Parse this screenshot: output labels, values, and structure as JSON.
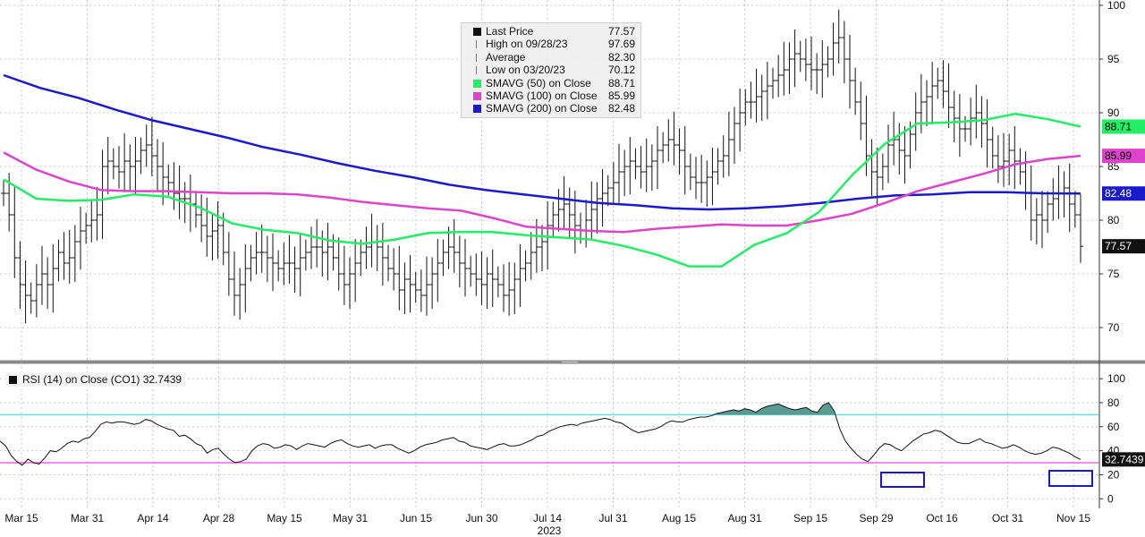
{
  "legend": {
    "rows": [
      {
        "label": "Last Price",
        "value": "77.57",
        "icon": "black-square"
      },
      {
        "label": "High on 09/28/23",
        "value": "97.69",
        "icon": "high-marker"
      },
      {
        "label": "Average",
        "value": "82.30",
        "icon": "average-marker"
      },
      {
        "label": "Low on 03/20/23",
        "value": "70.12",
        "icon": "low-marker"
      },
      {
        "label": "SMAVG (50)  on Close",
        "value": "88.71",
        "color": "#22ee66"
      },
      {
        "label": "SMAVG (100)  on Close",
        "value": "85.99",
        "color": "#dd44cc"
      },
      {
        "label": "SMAVG (200)  on Close",
        "value": "82.48",
        "color": "#1a1acc"
      }
    ]
  },
  "rsi_legend": {
    "label": "RSI (14)  on Close (CO1) 32.7439"
  },
  "chart_data": [
    {
      "type": "line",
      "name": "price-panel",
      "x_ticks": [
        "Mar 15",
        "Mar 31",
        "Apr 14",
        "Apr 28",
        "May 15",
        "May 31",
        "Jun 15",
        "Jun 30",
        "Jul 14",
        "Jul 31",
        "Aug 15",
        "Aug 31",
        "Sep 15",
        "Sep 29",
        "Oct 16",
        "Oct 31",
        "Nov 15"
      ],
      "x_year_label": "2023",
      "ylim": [
        67,
        100.5
      ],
      "y_ticks": [
        70,
        75,
        80,
        85,
        90,
        95,
        100
      ],
      "price_close": [
        82.5,
        80.5,
        76.5,
        74.0,
        73.0,
        72.5,
        74.0,
        75.0,
        74.0,
        75.5,
        77.0,
        76.0,
        76.5,
        78.0,
        79.0,
        79.5,
        80.0,
        80.5,
        85.0,
        85.5,
        85.0,
        84.5,
        85.5,
        85.0,
        85.5,
        86.5,
        87.0,
        86.0,
        85.0,
        84.0,
        83.5,
        82.5,
        82.0,
        82.0,
        81.5,
        80.5,
        79.5,
        78.5,
        79.0,
        79.5,
        77.0,
        74.5,
        73.0,
        74.0,
        75.5,
        76.5,
        77.0,
        77.0,
        76.5,
        76.0,
        75.5,
        76.0,
        76.0,
        75.5,
        76.5,
        77.0,
        77.5,
        77.5,
        77.0,
        77.5,
        76.5,
        75.0,
        74.0,
        75.0,
        76.0,
        77.0,
        77.5,
        78.0,
        77.5,
        76.5,
        75.5,
        75.0,
        73.5,
        74.5,
        74.0,
        73.5,
        73.0,
        74.0,
        75.0,
        76.0,
        77.0,
        77.5,
        77.0,
        76.0,
        75.5,
        75.0,
        74.5,
        74.0,
        75.0,
        74.5,
        74.0,
        73.0,
        73.5,
        74.5,
        75.5,
        76.0,
        77.0,
        77.5,
        78.0,
        79.5,
        80.5,
        81.0,
        81.5,
        80.5,
        79.5,
        79.0,
        80.0,
        81.0,
        82.0,
        82.5,
        83.0,
        83.5,
        84.5,
        85.0,
        85.5,
        85.0,
        84.5,
        85.0,
        85.5,
        86.5,
        87.0,
        87.5,
        87.0,
        86.5,
        85.0,
        84.0,
        83.5,
        83.5,
        84.0,
        84.5,
        85.5,
        86.0,
        87.5,
        89.0,
        90.0,
        91.0,
        91.0,
        91.5,
        92.0,
        92.5,
        93.0,
        93.5,
        94.0,
        95.0,
        95.5,
        95.0,
        94.5,
        94.0,
        94.0,
        94.5,
        95.0,
        96.5,
        97.0,
        95.0,
        93.0,
        91.0,
        89.0,
        86.0,
        84.5,
        84.0,
        85.0,
        87.0,
        87.5,
        86.5,
        86.0,
        88.0,
        90.0,
        91.0,
        91.5,
        92.5,
        93.0,
        92.0,
        90.5,
        89.5,
        88.5,
        88.5,
        89.5,
        90.0,
        89.0,
        87.5,
        86.0,
        85.0,
        85.5,
        86.5,
        85.5,
        84.5,
        82.5,
        80.0,
        80.5,
        80.0,
        81.5,
        82.0,
        82.5,
        83.0,
        81.5,
        80.5,
        77.57
      ],
      "sma50": [
        83.8,
        82.0,
        81.8,
        81.9,
        82.4,
        82.2,
        81.2,
        79.7,
        79.1,
        78.8,
        78.1,
        77.8,
        78.2,
        78.8,
        78.9,
        78.9,
        78.6,
        78.4,
        78.2,
        77.6,
        76.8,
        75.7,
        75.7,
        77.7,
        78.8,
        80.8,
        84.2,
        87.1,
        89.0,
        89.1,
        89.3,
        89.9,
        89.4,
        88.71
      ],
      "sma100": [
        86.3,
        84.7,
        83.6,
        82.8,
        82.7,
        82.7,
        82.6,
        82.5,
        82.5,
        82.4,
        82.1,
        81.7,
        81.4,
        81.1,
        80.9,
        80.2,
        79.4,
        79.2,
        79.0,
        78.9,
        79.2,
        79.4,
        79.6,
        79.5,
        79.5,
        80.0,
        80.6,
        81.6,
        82.7,
        83.5,
        84.3,
        85.2,
        85.7,
        85.99
      ],
      "sma200": [
        93.5,
        92.3,
        91.4,
        90.3,
        89.3,
        88.5,
        87.7,
        86.8,
        86.1,
        85.3,
        84.6,
        84.0,
        83.3,
        82.8,
        82.4,
        82.0,
        81.6,
        81.4,
        81.1,
        81.0,
        81.1,
        81.3,
        81.6,
        82.0,
        82.3,
        82.4,
        82.6,
        82.6,
        82.5,
        82.48
      ],
      "last_price_label": "77.57",
      "sma50_label": "88.71",
      "sma100_label": "85.99",
      "sma200_label": "82.48"
    },
    {
      "type": "area",
      "name": "rsi-panel",
      "ylim": [
        -8,
        112
      ],
      "y_ticks": [
        0,
        20,
        40,
        60,
        80,
        100
      ],
      "overbought": 70,
      "oversold": 30,
      "rsi": [
        48,
        44,
        36,
        31,
        28,
        33,
        30,
        29,
        34,
        40,
        39,
        42,
        46,
        48,
        47,
        50,
        51,
        56,
        62,
        64,
        63,
        64,
        64,
        63,
        62,
        63,
        66,
        65,
        62,
        60,
        58,
        57,
        52,
        53,
        50,
        46,
        44,
        38,
        41,
        42,
        37,
        33,
        30,
        31,
        33,
        40,
        44,
        46,
        45,
        42,
        43,
        45,
        44,
        41,
        44,
        46,
        45,
        44,
        43,
        46,
        48,
        49,
        46,
        44,
        43,
        44,
        45,
        42,
        44,
        45,
        45,
        42,
        40,
        38,
        40,
        43,
        45,
        46,
        47,
        49,
        50,
        51,
        48,
        47,
        44,
        43,
        42,
        41,
        43,
        45,
        46,
        44,
        44,
        45,
        47,
        49,
        52,
        53,
        56,
        58,
        60,
        61,
        62,
        61,
        63,
        64,
        65,
        66,
        67,
        66,
        64,
        63,
        60,
        57,
        55,
        56,
        57,
        58,
        60,
        63,
        65,
        64,
        64,
        66,
        67,
        68,
        68,
        69,
        71,
        72,
        73,
        74,
        73,
        75,
        74,
        72,
        75,
        77,
        78,
        79,
        77,
        75,
        74,
        75,
        76,
        73,
        72,
        78,
        80,
        73,
        58,
        48,
        42,
        37,
        33,
        31,
        36,
        42,
        46,
        45,
        42,
        40,
        44,
        48,
        51,
        54,
        55,
        57,
        56,
        53,
        50,
        47,
        46,
        46,
        48,
        50,
        47,
        46,
        44,
        42,
        43,
        45,
        43,
        40,
        38,
        37,
        38,
        40,
        43,
        42,
        40,
        38,
        35,
        32.74
      ],
      "last_label": "32.7439",
      "highlight_boxes": 2
    }
  ]
}
